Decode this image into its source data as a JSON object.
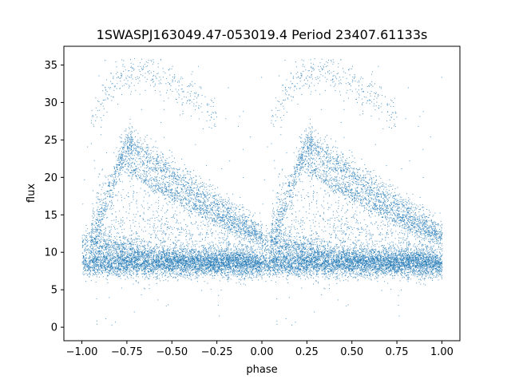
{
  "chart_data": {
    "type": "scatter",
    "title": "1SWASPJ163049.47-053019.4 Period 23407.61133s",
    "xlabel": "phase",
    "ylabel": "flux",
    "xlim": [
      -1.1,
      1.1
    ],
    "ylim": [
      -1.8,
      37.5
    ],
    "x_ticks": [
      -1.0,
      -0.75,
      -0.5,
      -0.25,
      0.0,
      0.25,
      0.5,
      0.75,
      1.0
    ],
    "x_tick_labels": [
      "−1.00",
      "−0.75",
      "−0.50",
      "−0.25",
      "0.00",
      "0.25",
      "0.50",
      "0.75",
      "1.00"
    ],
    "y_ticks": [
      0,
      5,
      10,
      15,
      20,
      25,
      30,
      35
    ],
    "y_tick_labels": [
      "0",
      "5",
      "10",
      "15",
      "20",
      "25",
      "30",
      "35"
    ],
    "grid": false,
    "marker_color": "#1f77b4",
    "series": [
      {
        "description_components": [
          {
            "kind": "baseline_band",
            "x_range": [
              -1.0,
              1.0
            ],
            "y_center": 8.5,
            "y_spread": 1.2
          },
          {
            "kind": "upper_declining_band",
            "points": [
              [
                -1.0,
                11.5
              ],
              [
                -0.5,
                10.3
              ],
              [
                0.0,
                9.2
              ],
              [
                0.5,
                8.8
              ],
              [
                1.0,
                8.5
              ]
            ]
          },
          {
            "kind": "outburst_branch_rise",
            "points": [
              [
                -0.95,
                12
              ],
              [
                -0.88,
                16
              ],
              [
                -0.82,
                20
              ],
              [
                -0.78,
                23.5
              ],
              [
                -0.72,
                25
              ]
            ]
          },
          {
            "kind": "outburst_branch_decline",
            "points": [
              [
                -0.75,
                24.5
              ],
              [
                -0.6,
                22
              ],
              [
                -0.45,
                19.5
              ],
              [
                -0.3,
                17
              ],
              [
                -0.15,
                14.5
              ],
              [
                0.0,
                12.5
              ]
            ]
          },
          {
            "kind": "outburst_branch_decline_2",
            "points": [
              [
                -0.8,
                22.5
              ],
              [
                -0.6,
                19
              ],
              [
                -0.4,
                16.5
              ],
              [
                -0.2,
                14
              ],
              [
                0.0,
                12
              ]
            ]
          },
          {
            "kind": "upper_arc",
            "points": [
              [
                -0.95,
                28
              ],
              [
                -0.85,
                33
              ],
              [
                -0.7,
                35.5
              ],
              [
                -0.55,
                34.5
              ],
              [
                -0.4,
                32
              ],
              [
                -0.25,
                29
              ]
            ]
          }
        ],
        "x": [
          -0.98,
          -0.9,
          -0.8,
          -0.75,
          -0.7,
          -0.6,
          -0.5,
          -0.4,
          -0.3,
          -0.2,
          -0.1,
          0.0,
          0.02,
          0.1,
          0.2,
          0.25,
          0.3,
          0.4,
          0.5,
          0.6,
          0.7,
          0.8,
          0.9,
          1.0
        ],
        "y": [
          11.5,
          15.0,
          22.0,
          24.5,
          24.0,
          22.0,
          20.0,
          18.0,
          16.5,
          14.5,
          13.5,
          12.5,
          11.5,
          15.0,
          22.0,
          24.5,
          24.0,
          22.0,
          20.0,
          18.0,
          16.5,
          14.5,
          13.5,
          12.5
        ]
      }
    ]
  }
}
